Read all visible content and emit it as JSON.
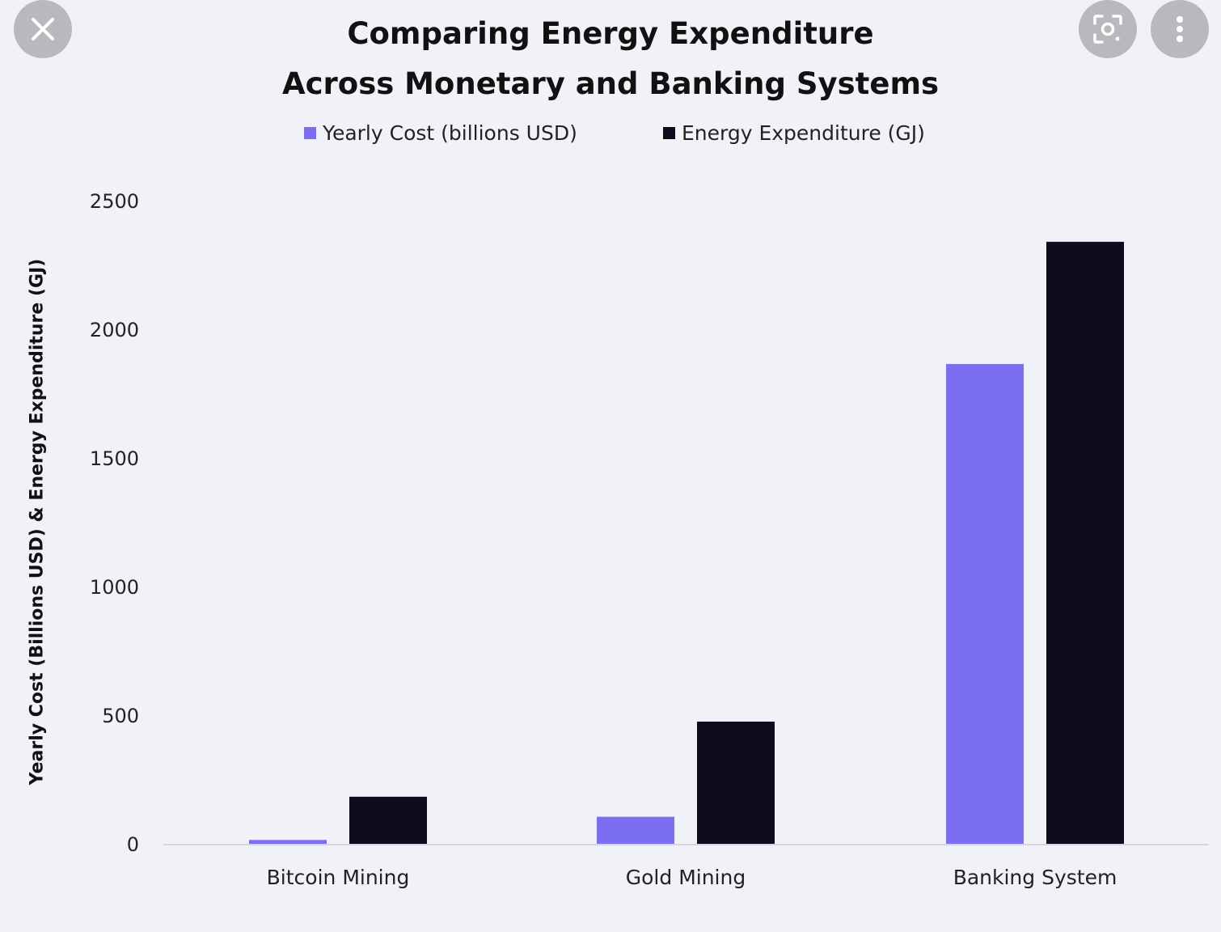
{
  "overlay": {
    "close_icon": "close-icon",
    "lens_icon": "visual-search-icon",
    "more_icon": "more-vertical-icon"
  },
  "chart_data": {
    "type": "bar",
    "title": "Comparing Energy Expenditure",
    "subtitle": "Across Monetary and Banking Systems",
    "xlabel": "",
    "ylabel": "Yearly Cost (Billions USD) & Energy Expenditure (GJ)",
    "categories": [
      "Bitcoin Mining",
      "Gold Mining",
      "Banking System"
    ],
    "series": [
      {
        "name": "Yearly Cost (billions USD)",
        "values": [
          15,
          105,
          1865
        ],
        "color": "#7b6ef0"
      },
      {
        "name": "Energy Expenditure (GJ)",
        "values": [
          183,
          475,
          2340
        ],
        "color": "#0e0b1e"
      }
    ],
    "ylim": [
      0,
      2500
    ],
    "yticks": [
      0,
      500,
      1000,
      1500,
      2000,
      2500
    ],
    "grid": false,
    "legend_position": "top"
  }
}
